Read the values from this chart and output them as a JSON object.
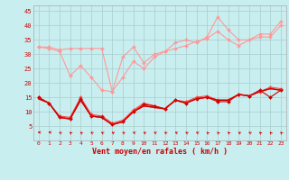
{
  "background_color": "#c8eef0",
  "grid_color": "#b0d8dc",
  "xlabel": "Vent moyen/en rafales ( km/h )",
  "xlim": [
    -0.5,
    23.5
  ],
  "ylim": [
    0,
    47
  ],
  "yticks": [
    5,
    10,
    15,
    20,
    25,
    30,
    35,
    40,
    45
  ],
  "xticks": [
    0,
    1,
    2,
    3,
    4,
    5,
    6,
    7,
    8,
    9,
    10,
    11,
    12,
    13,
    14,
    15,
    16,
    17,
    18,
    19,
    20,
    21,
    22,
    23
  ],
  "series": [
    {
      "color": "#ff9999",
      "linewidth": 0.8,
      "marker": "D",
      "markersize": 2.0,
      "data": [
        32.5,
        32.5,
        31.5,
        32,
        32,
        32,
        32,
        17,
        29,
        32.5,
        27,
        30,
        31,
        34,
        35,
        34,
        36,
        43,
        38.5,
        35,
        35,
        37,
        37,
        41.5
      ]
    },
    {
      "color": "#ff9999",
      "linewidth": 0.8,
      "marker": "D",
      "markersize": 2.0,
      "data": [
        32.5,
        32,
        31,
        22.5,
        26,
        22,
        17.5,
        17,
        22,
        27.5,
        25,
        29,
        31,
        32,
        33,
        34.5,
        35.5,
        38,
        35,
        33,
        35,
        36,
        36,
        40
      ]
    },
    {
      "color": "#ff4444",
      "linewidth": 0.8,
      "marker": "D",
      "markersize": 2.0,
      "data": [
        15,
        13,
        8.5,
        8,
        15,
        9,
        8.5,
        6,
        7,
        10.5,
        13,
        12,
        11,
        14,
        13.5,
        15,
        15.5,
        14,
        14,
        16,
        15.5,
        17,
        18.5,
        18
      ]
    },
    {
      "color": "#cc0000",
      "linewidth": 0.8,
      "marker": "D",
      "markersize": 2.0,
      "data": [
        15,
        13,
        8,
        7.5,
        14.5,
        8.5,
        8,
        5.5,
        6.5,
        10,
        12.5,
        12,
        11,
        14,
        13,
        14.5,
        15,
        13.5,
        13.5,
        16,
        15.5,
        17.5,
        15,
        17.5
      ]
    },
    {
      "color": "#ff4444",
      "linewidth": 1.0,
      "marker": null,
      "markersize": 0,
      "data": [
        14.5,
        13,
        8,
        7.5,
        14,
        8.5,
        8,
        5.5,
        6.5,
        10,
        12,
        11.5,
        11,
        14,
        13,
        14.5,
        15,
        14,
        14,
        16,
        15.5,
        17,
        18,
        17.5
      ]
    },
    {
      "color": "#cc0000",
      "linewidth": 1.0,
      "marker": null,
      "markersize": 0,
      "data": [
        14.5,
        13,
        8,
        7.5,
        14,
        8.5,
        8,
        5.5,
        6.5,
        10,
        12,
        11.5,
        11,
        14,
        13,
        14.5,
        15,
        14,
        14,
        16,
        15.5,
        17,
        18,
        17.5
      ]
    }
  ],
  "arrow_color": "#dd0000",
  "arrow_angles_deg": [
    270,
    270,
    250,
    240,
    245,
    250,
    250,
    250,
    250,
    255,
    250,
    255,
    250,
    255,
    250,
    255,
    240,
    235,
    240,
    250,
    250,
    240,
    235,
    235
  ]
}
